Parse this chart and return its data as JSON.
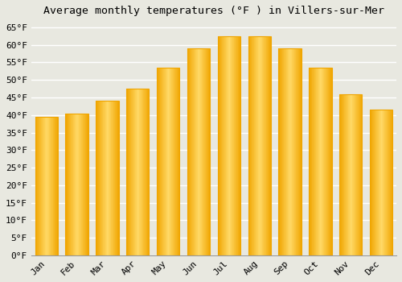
{
  "title": "Average monthly temperatures (°F ) in Villers-sur-Mer",
  "months": [
    "Jan",
    "Feb",
    "Mar",
    "Apr",
    "May",
    "Jun",
    "Jul",
    "Aug",
    "Sep",
    "Oct",
    "Nov",
    "Dec"
  ],
  "values": [
    39.5,
    40.5,
    44.0,
    47.5,
    53.5,
    59.0,
    62.5,
    62.5,
    59.0,
    53.5,
    46.0,
    41.5
  ],
  "bar_color_center": "#FFD966",
  "bar_color_edge": "#F0A500",
  "background_color": "#E8E8E0",
  "grid_color": "#FFFFFF",
  "ylim": [
    0,
    67
  ],
  "yticks": [
    0,
    5,
    10,
    15,
    20,
    25,
    30,
    35,
    40,
    45,
    50,
    55,
    60,
    65
  ],
  "title_fontsize": 9.5,
  "tick_fontsize": 8,
  "tick_font": "monospace"
}
